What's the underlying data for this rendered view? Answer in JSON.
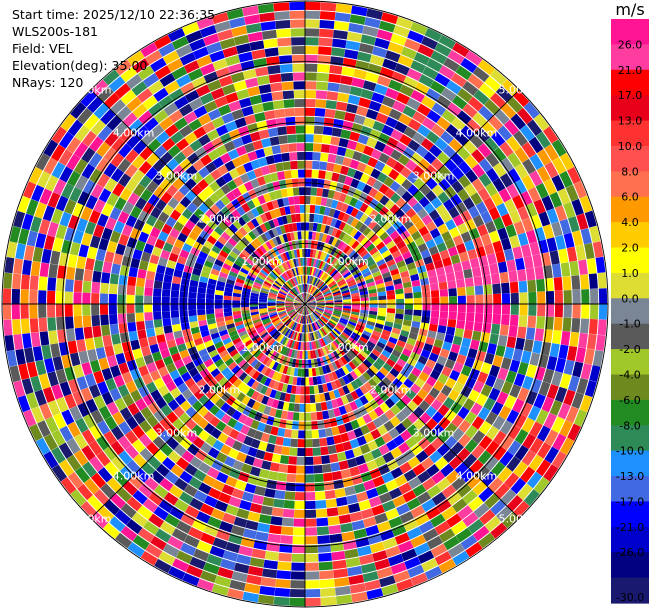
{
  "header": {
    "start_time": "Start time: 2025/12/10 22:36:35",
    "site": "WLS200s-181",
    "field": "Field: VEL",
    "elevation": "Elevation(deg): 35.00",
    "nrays": "NRays: 120"
  },
  "chart_data": {
    "type": "heatmap",
    "projection": "polar (PPI)",
    "field": "VEL",
    "units": "m/s",
    "n_rays": 120,
    "elevation_deg": 35.0,
    "range_rings_km": [
      1,
      2,
      3,
      4,
      5
    ],
    "range_ring_labels": [
      "1.00km",
      "2.00km",
      "3.00km",
      "4.00km",
      "5.00km"
    ],
    "spokes": [
      "0°",
      "45°",
      "90°",
      "135°",
      "180°",
      "225°",
      "270°",
      "315°"
    ],
    "colorbar": {
      "label": "m/s",
      "min": -30.0,
      "max": 30.0,
      "ticks": [
        "26.0",
        "21.0",
        "17.0",
        "13.0",
        "10.0",
        "8.0",
        "6.0",
        "4.0",
        "2.0",
        "1.0",
        "0.0",
        "-1.0",
        "-2.0",
        "-4.0",
        "-6.0",
        "-8.0",
        "-10.0",
        "-13.0",
        "-17.0",
        "-21.0",
        "-26.0",
        "-30.0"
      ],
      "colors": [
        "#ff1493",
        "#ff3ca0",
        "#ff0000",
        "#e8001a",
        "#ff3232",
        "#ff5050",
        "#ff7050",
        "#ff9900",
        "#ffcc00",
        "#ffff00",
        "#dddd33",
        "#7a8595",
        "#5a5a5a",
        "#a0c828",
        "#6e8a1e",
        "#228b22",
        "#2e8b57",
        "#1e90ff",
        "#4169e1",
        "#0000ff",
        "#0000cd",
        "#000080",
        "#191970"
      ]
    },
    "patterns": [
      {
        "sector": "east, azimuth 75-85 deg, 2-4 km",
        "velocity_m_s": 21.0
      },
      {
        "sector": "east, azimuth 90-100 deg, 2-3.5 km",
        "velocity_m_s": 26.0
      },
      {
        "sector": "west, azimuth 265-285 deg, 0.5-2.5 km",
        "velocity_m_s": -26.0
      },
      {
        "sector": "northeast, azimuth 25-30 deg, 4-5 km",
        "velocity_m_s": -10.0
      }
    ]
  }
}
